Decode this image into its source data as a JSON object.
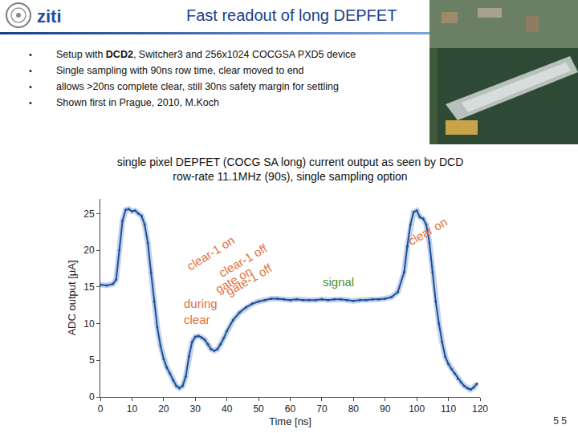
{
  "slide": {
    "logo": "ziti",
    "title": "Fast readout of long DEPFET",
    "bullets": [
      [
        {
          "text": "Setup with "
        },
        {
          "text": "DCD2",
          "bold": true
        },
        {
          "text": ", Switcher3 and 256x1024 COCGSA PXD5 device"
        }
      ],
      [
        {
          "text": "Single sampling with 90ns row time, clear moved to end"
        }
      ],
      [
        {
          "text": "allows >20ns complete clear, still 30ns safety margin for settling"
        }
      ],
      [
        {
          "text": "Shown first in Prague, 2010, M.Koch"
        }
      ]
    ],
    "page_number": "5 5"
  },
  "chart_data": {
    "type": "line",
    "title": [
      "single pixel DEPFET (COCG SA long) current output as seen by DCD",
      "row-rate 11.1MHz (90s), single sampling option"
    ],
    "x_label": "Time [ns]",
    "y_label": "ADC output [μA]",
    "x": [
      0,
      2,
      4,
      5,
      6,
      7,
      8,
      9,
      10,
      11,
      12,
      13,
      14,
      15,
      16,
      17,
      18,
      19,
      20,
      21,
      22,
      23,
      24,
      25,
      26,
      27,
      28,
      29,
      30,
      31,
      32,
      33,
      34,
      35,
      36,
      37,
      38,
      39,
      40,
      42,
      44,
      46,
      48,
      50,
      52,
      54,
      56,
      58,
      60,
      62,
      64,
      66,
      68,
      70,
      72,
      74,
      76,
      78,
      80,
      82,
      84,
      86,
      88,
      90,
      92,
      94,
      96,
      97,
      98,
      99,
      100,
      101,
      102,
      103,
      104,
      105,
      106,
      107,
      108,
      109,
      110,
      111,
      112,
      113,
      114,
      115,
      116,
      117,
      118,
      119
    ],
    "values": [
      15.3,
      15.2,
      15.4,
      16,
      20,
      24,
      25.5,
      25.6,
      25.3,
      25.4,
      25,
      24.7,
      23.5,
      21,
      17,
      13,
      9.5,
      7,
      5.2,
      4,
      3.2,
      2.3,
      1.5,
      1.2,
      1.5,
      2.8,
      5.5,
      7.5,
      8.2,
      8.3,
      8.1,
      7.8,
      7.2,
      6.5,
      6.3,
      6.5,
      7.2,
      8,
      9,
      10.5,
      11.5,
      12.2,
      12.7,
      13,
      13.2,
      13.4,
      13.4,
      13.3,
      13.2,
      13.3,
      13.2,
      13.2,
      13.2,
      13.3,
      13.2,
      13.3,
      13.3,
      13.2,
      13.1,
      13.2,
      13.2,
      13.3,
      13.3,
      13.4,
      13.6,
      14.3,
      17,
      20.5,
      23.5,
      25.2,
      25.4,
      24.5,
      24.3,
      23.5,
      21,
      17,
      13,
      10,
      7.5,
      5.5,
      4.5,
      3.8,
      3.2,
      2.5,
      2,
      1.5,
      1.2,
      1,
      1.3,
      1.8
    ],
    "color": "#1f4f96",
    "marker": "circle",
    "line_style": "solid",
    "xlim": [
      0,
      120
    ],
    "xticks": [
      0,
      10,
      20,
      30,
      40,
      50,
      60,
      70,
      80,
      90,
      100,
      110,
      120
    ],
    "ylim": [
      0,
      27
    ],
    "yticks": [
      0,
      5,
      10,
      15,
      20,
      25
    ],
    "grid": false,
    "annotations": [
      {
        "text": "clear-1 on",
        "color": "#e2703a"
      },
      {
        "text": "clear-1 off",
        "color": "#e2703a"
      },
      {
        "text": "gate-1 off",
        "color": "#e2703a"
      },
      {
        "text": "gate on",
        "color": "#e2703a"
      },
      {
        "text": "during\nclear",
        "color": "#e2703a"
      },
      {
        "text": "signal",
        "color": "#4f8f2a"
      },
      {
        "text": "clear on",
        "color": "#e2703a"
      }
    ]
  }
}
